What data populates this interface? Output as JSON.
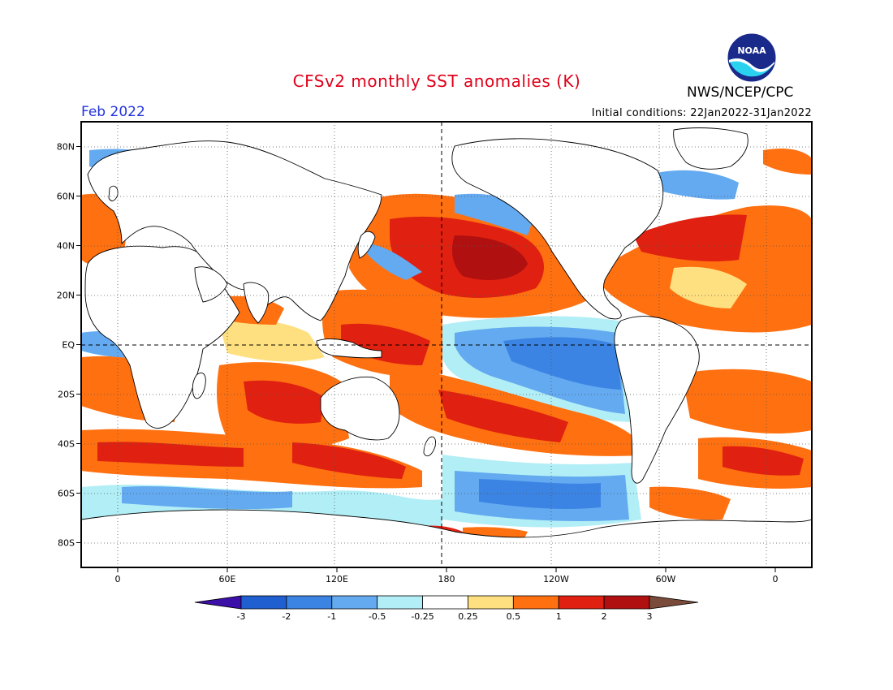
{
  "header": {
    "title": "CFSv2 monthly SST anomalies (K)",
    "org": "NWS/NCEP/CPC",
    "month": "Feb 2022",
    "initial_conditions": "Initial conditions: 22Jan2022-31Jan2022"
  },
  "logo": {
    "text": "NOAA",
    "name": "noaa-logo"
  },
  "axes": {
    "lat_labels": [
      "80N",
      "60N",
      "40N",
      "20N",
      "EQ",
      "20S",
      "40S",
      "60S",
      "80S"
    ],
    "lat_values": [
      80,
      60,
      40,
      20,
      0,
      -20,
      -40,
      -60,
      -80
    ],
    "lon_labels": [
      "0",
      "60E",
      "120E",
      "180",
      "120W",
      "60W",
      "0"
    ],
    "lon_values": [
      0,
      60,
      120,
      180,
      240,
      300,
      360
    ],
    "lat_range": [
      -90,
      90
    ],
    "lon_range": [
      -20,
      380
    ]
  },
  "colorbar": {
    "labels": [
      "-3",
      "-2",
      "-1",
      "-0.5",
      "-0.25",
      "0.25",
      "0.5",
      "1",
      "2",
      "3"
    ],
    "colors": [
      "#3b0fa8",
      "#1f5fd0",
      "#3c84e4",
      "#63aaf0",
      "#b2eef6",
      "#ffffff",
      "#ffe080",
      "#ff7010",
      "#e02010",
      "#b01010",
      "#7a4b3a"
    ],
    "unit": "K"
  },
  "palette": {
    "land": "#ffffff",
    "coast": "#000000",
    "grid": "#555555"
  }
}
